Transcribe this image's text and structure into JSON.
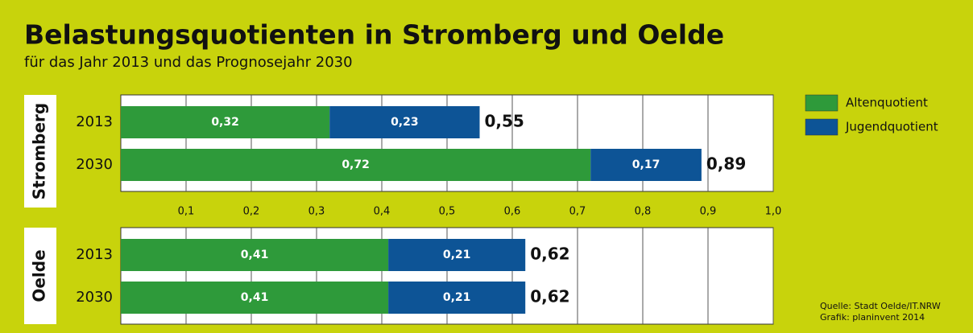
{
  "chart_data": {
    "type": "bar",
    "stacked": true,
    "orientation": "horizontal",
    "title": "Belastungsquotienten in Stromberg und Oelde",
    "subtitle": "für das Jahr 2013 und das Prognosejahr 2030",
    "groups": [
      "Stromberg",
      "Oelde"
    ],
    "categories": [
      [
        "2013",
        "2030"
      ],
      [
        "2013",
        "2030"
      ]
    ],
    "series": [
      {
        "name": "Altenquotient",
        "color": "#2e9a3a",
        "values": [
          [
            0.32,
            0.72
          ],
          [
            0.41,
            0.41
          ]
        ],
        "value_labels": [
          [
            "0,32",
            "0,72"
          ],
          [
            "0,41",
            "0,41"
          ]
        ]
      },
      {
        "name": "Jugendquotient",
        "color": "#0d5496",
        "values": [
          [
            0.23,
            0.17
          ],
          [
            0.21,
            0.21
          ]
        ],
        "value_labels": [
          [
            "0,23",
            "0,17"
          ],
          [
            "0,21",
            "0,21"
          ]
        ]
      }
    ],
    "totals": [
      [
        0.55,
        0.89
      ],
      [
        0.62,
        0.62
      ]
    ],
    "total_labels": [
      [
        "0,55",
        "0,89"
      ],
      [
        "0,62",
        "0,62"
      ]
    ],
    "xlim": [
      0,
      1
    ],
    "xticks": [
      {
        "value": 0.1,
        "label": "0,1"
      },
      {
        "value": 0.2,
        "label": "0,2"
      },
      {
        "value": 0.3,
        "label": "0,3"
      },
      {
        "value": 0.4,
        "label": "0,4"
      },
      {
        "value": 0.5,
        "label": "0,5"
      },
      {
        "value": 0.6,
        "label": "0,6"
      },
      {
        "value": 0.7,
        "label": "0,7"
      },
      {
        "value": 0.8,
        "label": "0,8"
      },
      {
        "value": 0.9,
        "label": "0,9"
      },
      {
        "value": 1.0,
        "label": "1,0"
      }
    ],
    "grid": true,
    "source": [
      "Quelle: Stadt Oelde/IT.NRW",
      "Grafik: planinvent 2014"
    ]
  }
}
